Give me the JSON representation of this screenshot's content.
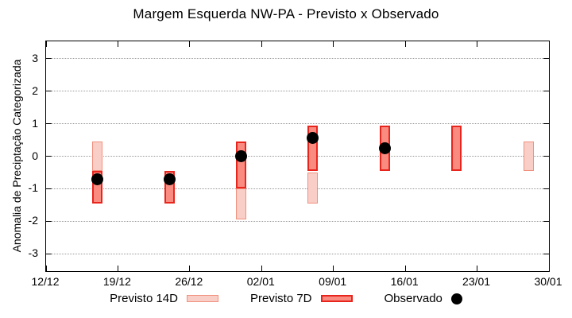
{
  "title": "Margem Esquerda NW-PA - Previsto x Observado",
  "ylabel": "Anomalia de Preciptação Categorizada",
  "legend": {
    "previsto14_label": "Previsto 14D",
    "previsto7_label": "Previsto 7D",
    "observado_label": "Observado"
  },
  "colors": {
    "bar14_fill": "#f9cec7",
    "bar14_border": "#f0907e",
    "bar7_fill": "#f98b80",
    "bar7_border": "#e8251d",
    "observed": "#000000",
    "grid": "#999999"
  },
  "chart_data": {
    "type": "bar",
    "subtype": "range-bars-with-observed-points",
    "title": "Margem Esquerda NW-PA - Previsto x Observado",
    "xlabel": "",
    "ylabel": "Anomalia de Preciptação Categorizada",
    "grid": true,
    "legend_position": "bottom",
    "x_tick_labels": [
      "12/12",
      "19/12",
      "26/12",
      "02/01",
      "09/01",
      "16/01",
      "23/01",
      "30/01"
    ],
    "x_tick_days": [
      0,
      7,
      14,
      21,
      28,
      35,
      42,
      49
    ],
    "x_total_days": 49,
    "y_ticks": [
      3,
      2,
      1,
      0,
      -1,
      -2,
      -3
    ],
    "ylim": [
      -3.53,
      3.53
    ],
    "series_names": [
      "Previsto 14D",
      "Previsto 7D",
      "Observado"
    ],
    "clusters": [
      {
        "date": "17/12",
        "x_day": 5,
        "previsto14_range": [
          -0.45,
          0.45
        ],
        "previsto7_range": [
          -1.45,
          -0.45
        ],
        "observado": -0.7
      },
      {
        "date": "24/12",
        "x_day": 12,
        "previsto14_range": null,
        "previsto7_range": [
          -1.45,
          -0.45
        ],
        "observado": -0.7
      },
      {
        "date": "31/12",
        "x_day": 19,
        "previsto14_range": [
          -1.95,
          -1.0
        ],
        "previsto7_range": [
          -1.0,
          0.45
        ],
        "observado": 0.0
      },
      {
        "date": "07/01",
        "x_day": 26,
        "previsto14_range": [
          -1.45,
          -0.5
        ],
        "previsto7_range": [
          -0.45,
          0.95
        ],
        "observado": 0.55
      },
      {
        "date": "14/01",
        "x_day": 33,
        "previsto14_range": null,
        "previsto7_range": [
          -0.45,
          0.95
        ],
        "observado": 0.25
      },
      {
        "date": "21/01",
        "x_day": 40,
        "previsto14_range": null,
        "previsto7_range": [
          -0.45,
          0.95
        ],
        "observado": null
      },
      {
        "date": "28/01",
        "x_day": 47,
        "previsto14_range": [
          -0.45,
          0.45
        ],
        "previsto7_range": null,
        "observado": null
      }
    ]
  }
}
